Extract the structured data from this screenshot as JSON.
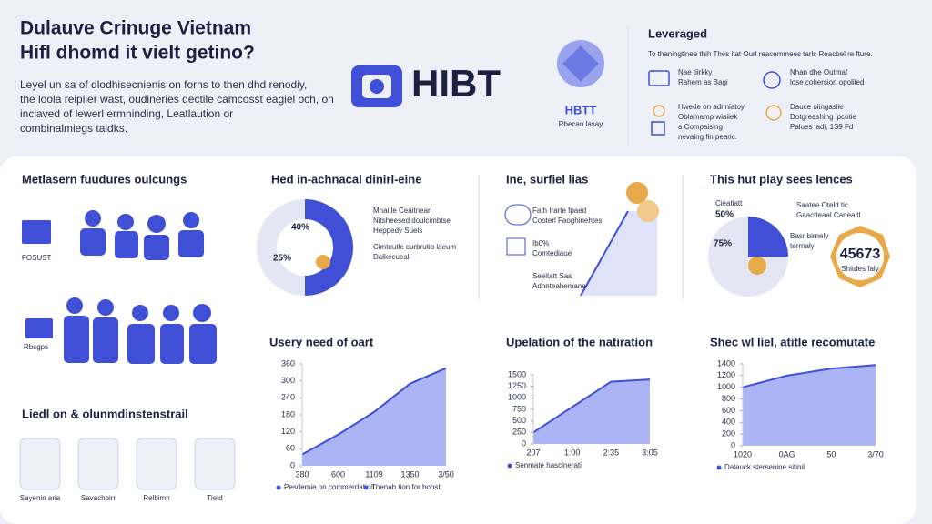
{
  "header": {
    "title": [
      "Dulauve Crinuge Vietnam",
      "Hifl dhomd it vielt getino?"
    ],
    "body": [
      "Leyel un sa of dlodhisecnienis on forns to then dhd renodiy,",
      "the loola reiplier wast, oudineries dectile camcosst eagiel och, on",
      "inclaved of lewerl ermninding, Leatlaution or",
      "combinalmiegs taidks."
    ]
  },
  "logo": {
    "main": "HIBT",
    "badge": "HBTT",
    "badge_caption": "Rbecan lasay"
  },
  "leveraged": {
    "title": "Leveraged",
    "subtitle": "To thaningtinee thih Thes itat Ourl reacemmees tarls Reacbel re fture.",
    "items": [
      [
        "Nae tiirkky",
        "Rahem as Bagi"
      ],
      [
        "Nhan dhe Outmaf",
        "lose cohersion opoliled"
      ],
      [
        "Hwede on adriniatoy",
        "Oblamamp wiaiiek",
        "a Compaising",
        "nevaing fin pearic."
      ],
      [
        "Dauce oiingasiie",
        "Dotgreashing ipcotie",
        "Palues ladi, 1S9 Fd"
      ]
    ]
  },
  "sections": [
    {
      "title": "Metlasern fuudures oulcungs",
      "labels": [
        "FOSUST",
        "Rbsgps"
      ]
    },
    {
      "title": "Hed in-achnacal dinirl-eine",
      "labels": [
        "40%",
        "25%"
      ],
      "notes": [
        [
          "Mnaitle Ceaitnean",
          "Nitsheesed doulcimbtse",
          "Heppedy Suels"
        ],
        [
          "Cimteutle curbrutib laeum",
          "Dalkecueall"
        ]
      ]
    },
    {
      "title": "Ine, surfiel lias",
      "notes": [
        [
          "Fath Irarte fpaed",
          "Cooterl Faoghinehtes"
        ],
        [
          "Ib0%",
          "Comtediaue"
        ],
        [
          "Seeitatt Sas",
          "Adnnteahemane"
        ]
      ]
    },
    {
      "title": "This hut play sees lences",
      "labels": [
        "Cieatiatt",
        "50%",
        "75%"
      ],
      "notes": [
        [
          "Saatee Oteld tic",
          "Gaactteaal Caneaitl"
        ],
        [
          "Basr birnely",
          "terrnaly"
        ]
      ],
      "badge": "45673",
      "badge_caption": "Shitdes faly"
    },
    {
      "title": "Liedl on & olunmdinstenstrail",
      "labels": [
        "Sayenin aria",
        "Savachbirr",
        "Relbimn",
        "Tietd"
      ]
    }
  ],
  "chart_data": [
    {
      "type": "area",
      "title": "Usery need of oart",
      "categories": [
        "380",
        "600",
        "1109",
        "1350",
        "3/50"
      ],
      "values": [
        40,
        110,
        190,
        290,
        345
      ],
      "color": "#3f4fd6",
      "ylim": [
        0,
        360
      ],
      "yticks": [
        0,
        60,
        120,
        180,
        240,
        300,
        360
      ],
      "legend": [
        "Pesdemie on commerdation",
        "Thenab tion for boostl"
      ]
    },
    {
      "type": "area",
      "title": "Upelation of the natiration",
      "categories": [
        "207",
        "1:00",
        "2:35",
        "3:05"
      ],
      "values": [
        250,
        800,
        1350,
        1400
      ],
      "color": "#3f4fd6",
      "ylim": [
        0,
        1500
      ],
      "yticks": [
        0,
        250,
        500,
        750,
        1000,
        1250,
        1500
      ],
      "legend": [
        "Senmate hascinerati"
      ]
    },
    {
      "type": "area",
      "title": "Shec wl liel, atitle recomutate",
      "categories": [
        "1020",
        "0AG",
        "50",
        "3/70"
      ],
      "values": [
        1000,
        1200,
        1320,
        1380
      ],
      "color": "#3f4fd6",
      "ylim": [
        0,
        1400
      ],
      "yticks": [
        0,
        200,
        400,
        600,
        800,
        1000,
        1200,
        1400
      ],
      "legend": [
        "Dalauck stersenine sitinil"
      ]
    }
  ]
}
